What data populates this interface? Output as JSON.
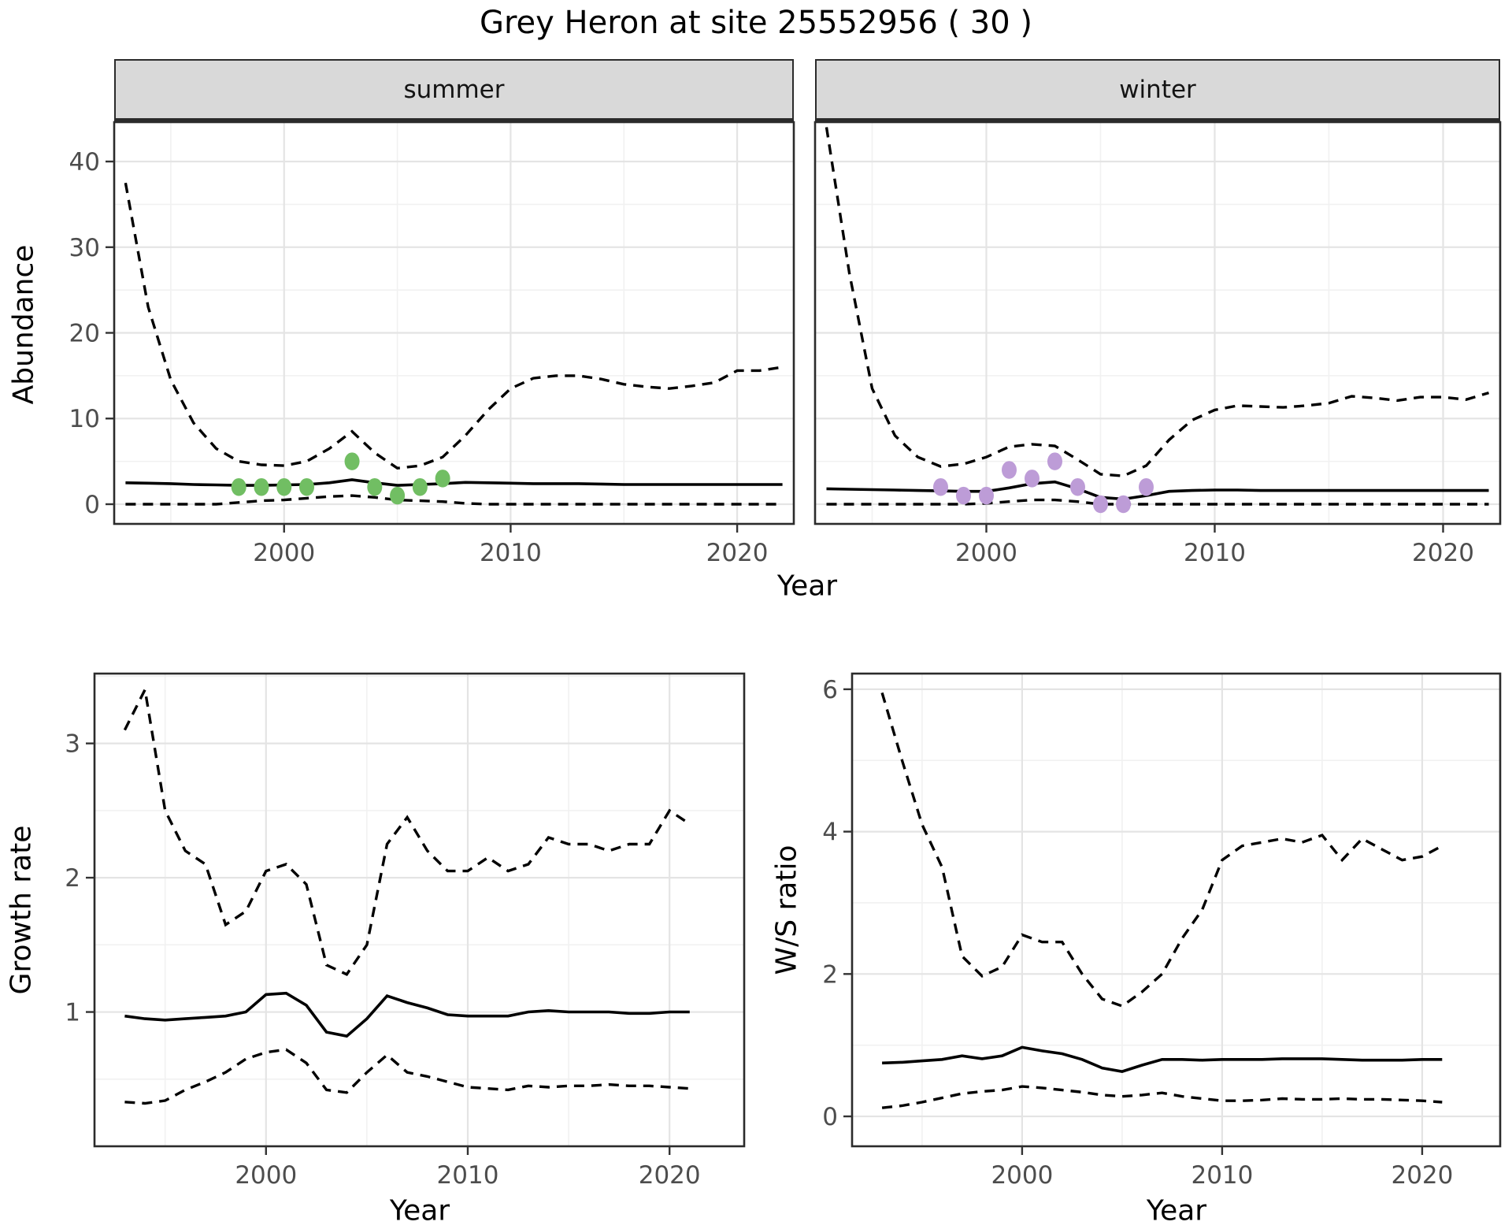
{
  "title": "Grey Heron at site 25552956 ( 30 )",
  "facets": [
    "summer",
    "winter"
  ],
  "axis_titles": {
    "abundance": "Abundance",
    "year": "Year",
    "growth": "Growth rate",
    "ws": "W/S ratio"
  },
  "style": {
    "summer_point_color": "#71BE63",
    "winter_point_color": "#BD9CD7",
    "line_color": "#000000",
    "strip_bg": "#D9D9D9",
    "panel_border": "#2B2B2B",
    "grid_major": "#E4E4E4",
    "grid_minor": "#F1F1F1",
    "tick_text": "#4D4D4D",
    "tick_mark": "#333333"
  },
  "chart_data": [
    {
      "id": "abundance-summer",
      "type": "line",
      "facet": "summer",
      "ylabel": "Abundance",
      "xlabel": "Year",
      "legend": "none",
      "grid": true,
      "xlim": [
        1992.5,
        2022.5
      ],
      "ylim": [
        -2.3,
        44.6
      ],
      "x_ticks": [
        2000,
        2010,
        2020
      ],
      "x_minor": [
        1995,
        2005,
        2015
      ],
      "y_ticks": [
        0,
        10,
        20,
        30,
        40
      ],
      "y_minor": [
        5,
        15,
        25,
        35
      ],
      "show_y_labels": true,
      "x": [
        1993,
        1994,
        1995,
        1996,
        1997,
        1998,
        1999,
        2000,
        2001,
        2002,
        2003,
        2004,
        2005,
        2006,
        2007,
        2008,
        2009,
        2010,
        2011,
        2012,
        2013,
        2014,
        2015,
        2016,
        2017,
        2018,
        2019,
        2020,
        2021,
        2022
      ],
      "series": [
        {
          "name": "upper_95_ci",
          "style": "dashed",
          "values": [
            37.5,
            23,
            14.5,
            9.5,
            6.5,
            5,
            4.6,
            4.5,
            5,
            6.5,
            8.5,
            6,
            4.2,
            4.5,
            5.5,
            8,
            11,
            13.5,
            14.7,
            15,
            15,
            14.6,
            14,
            13.7,
            13.5,
            13.8,
            14.2,
            15.6,
            15.6,
            16
          ]
        },
        {
          "name": "median",
          "style": "solid",
          "values": [
            2.5,
            2.45,
            2.4,
            2.3,
            2.25,
            2.2,
            2.2,
            2.25,
            2.3,
            2.5,
            2.85,
            2.5,
            2.2,
            2.3,
            2.4,
            2.55,
            2.5,
            2.45,
            2.4,
            2.4,
            2.4,
            2.35,
            2.3,
            2.3,
            2.3,
            2.3,
            2.3,
            2.3,
            2.3,
            2.3
          ]
        },
        {
          "name": "lower_95_ci",
          "style": "dashed",
          "values": [
            0,
            0,
            0,
            0,
            0,
            0.2,
            0.4,
            0.5,
            0.7,
            0.9,
            1.0,
            0.8,
            0.5,
            0.4,
            0.3,
            0.1,
            0,
            0,
            0,
            0,
            0,
            0,
            0,
            0,
            0,
            0,
            0,
            0,
            0,
            0
          ]
        }
      ],
      "observations": {
        "years": [
          1998,
          1999,
          2000,
          2001,
          2003,
          2004,
          2005,
          2006,
          2007
        ],
        "values": [
          2,
          2,
          2,
          2,
          5,
          2,
          1,
          2,
          3
        ],
        "color": "#71BE63"
      }
    },
    {
      "id": "abundance-winter",
      "type": "line",
      "facet": "winter",
      "ylabel": "Abundance",
      "xlabel": "Year",
      "legend": "none",
      "grid": true,
      "xlim": [
        1992.5,
        2022.5
      ],
      "ylim": [
        -2.3,
        44.6
      ],
      "x_ticks": [
        2000,
        2010,
        2020
      ],
      "x_minor": [
        1995,
        2005,
        2015
      ],
      "y_ticks": [
        0,
        10,
        20,
        30,
        40
      ],
      "y_minor": [
        5,
        15,
        25,
        35
      ],
      "show_y_labels": false,
      "x": [
        1993,
        1994,
        1995,
        1996,
        1997,
        1998,
        1999,
        2000,
        2001,
        2002,
        2003,
        2004,
        2005,
        2006,
        2007,
        2008,
        2009,
        2010,
        2011,
        2012,
        2013,
        2014,
        2015,
        2016,
        2017,
        2018,
        2019,
        2020,
        2021,
        2022
      ],
      "series": [
        {
          "name": "upper_95_ci",
          "style": "dashed",
          "values": [
            44,
            27,
            13.5,
            8,
            5.5,
            4.4,
            4.7,
            5.5,
            6.7,
            7.0,
            6.8,
            5.2,
            3.5,
            3.3,
            4.5,
            7.5,
            9.8,
            11,
            11.5,
            11.4,
            11.3,
            11.5,
            11.8,
            12.6,
            12.4,
            12.1,
            12.5,
            12.5,
            12.2,
            13
          ]
        },
        {
          "name": "median",
          "style": "solid",
          "values": [
            1.8,
            1.75,
            1.7,
            1.65,
            1.6,
            1.55,
            1.5,
            1.5,
            1.9,
            2.4,
            2.6,
            1.8,
            0.8,
            0.6,
            1.0,
            1.5,
            1.6,
            1.65,
            1.65,
            1.6,
            1.6,
            1.6,
            1.6,
            1.6,
            1.6,
            1.6,
            1.6,
            1.6,
            1.6,
            1.6
          ]
        },
        {
          "name": "lower_95_ci",
          "style": "dashed",
          "values": [
            0,
            0,
            0,
            0,
            0,
            0,
            0,
            0.1,
            0.3,
            0.5,
            0.5,
            0.3,
            0,
            0,
            0,
            0,
            0,
            0,
            0,
            0,
            0,
            0,
            0,
            0,
            0,
            0,
            0,
            0,
            0,
            0
          ]
        }
      ],
      "observations": {
        "years": [
          1998,
          1999,
          2000,
          2001,
          2002,
          2003,
          2004,
          2005,
          2006,
          2007
        ],
        "values": [
          2,
          1,
          1,
          4,
          3,
          5,
          2,
          0,
          0,
          2
        ],
        "color": "#BD9CD7"
      }
    },
    {
      "id": "growth-rate",
      "type": "line",
      "ylabel": "Growth rate",
      "xlabel": "Year",
      "legend": "none",
      "grid": true,
      "xlim": [
        1991.5,
        2023.7
      ],
      "ylim": [
        0.0,
        3.52
      ],
      "x_ticks": [
        2000,
        2010,
        2020
      ],
      "x_minor": [
        1995,
        2005,
        2015
      ],
      "y_ticks": [
        1,
        2,
        3
      ],
      "y_minor": [
        0.5,
        1.5,
        2.5,
        3.5
      ],
      "show_y_labels": true,
      "x": [
        1993,
        1994,
        1995,
        1996,
        1997,
        1998,
        1999,
        2000,
        2001,
        2002,
        2003,
        2004,
        2005,
        2006,
        2007,
        2008,
        2009,
        2010,
        2011,
        2012,
        2013,
        2014,
        2015,
        2016,
        2017,
        2018,
        2019,
        2020,
        2021
      ],
      "series": [
        {
          "name": "upper_95_ci",
          "style": "dashed",
          "values": [
            3.1,
            3.4,
            2.5,
            2.2,
            2.1,
            1.65,
            1.75,
            2.05,
            2.1,
            1.95,
            1.35,
            1.28,
            1.5,
            2.25,
            2.45,
            2.2,
            2.05,
            2.05,
            2.15,
            2.05,
            2.1,
            2.3,
            2.25,
            2.25,
            2.2,
            2.25,
            2.25,
            2.5,
            2.4
          ]
        },
        {
          "name": "median",
          "style": "solid",
          "values": [
            0.97,
            0.95,
            0.94,
            0.95,
            0.96,
            0.97,
            1.0,
            1.13,
            1.14,
            1.05,
            0.85,
            0.82,
            0.95,
            1.12,
            1.07,
            1.03,
            0.98,
            0.97,
            0.97,
            0.97,
            1.0,
            1.01,
            1.0,
            1.0,
            1.0,
            0.99,
            0.99,
            1.0,
            1.0
          ]
        },
        {
          "name": "lower_95_ci",
          "style": "dashed",
          "values": [
            0.33,
            0.32,
            0.34,
            0.42,
            0.48,
            0.55,
            0.65,
            0.7,
            0.72,
            0.62,
            0.42,
            0.4,
            0.55,
            0.68,
            0.55,
            0.52,
            0.48,
            0.44,
            0.43,
            0.42,
            0.45,
            0.44,
            0.45,
            0.45,
            0.46,
            0.45,
            0.45,
            0.44,
            0.43
          ]
        }
      ]
    },
    {
      "id": "ws-ratio",
      "type": "line",
      "ylabel": "W/S ratio",
      "xlabel": "Year",
      "legend": "none",
      "grid": true,
      "xlim": [
        1991.5,
        2023.9
      ],
      "ylim": [
        -0.42,
        6.22
      ],
      "x_ticks": [
        2000,
        2010,
        2020
      ],
      "x_minor": [
        1995,
        2005,
        2015
      ],
      "y_ticks": [
        0,
        2,
        4,
        6
      ],
      "y_minor": [
        1,
        3,
        5
      ],
      "show_y_labels": true,
      "x": [
        1993,
        1994,
        1995,
        1996,
        1997,
        1998,
        1999,
        2000,
        2001,
        2002,
        2003,
        2004,
        2005,
        2006,
        2007,
        2008,
        2009,
        2010,
        2011,
        2012,
        2013,
        2014,
        2015,
        2016,
        2017,
        2018,
        2019,
        2020,
        2021
      ],
      "series": [
        {
          "name": "upper_95_ci",
          "style": "dashed",
          "values": [
            5.95,
            5.0,
            4.1,
            3.5,
            2.25,
            1.97,
            2.1,
            2.55,
            2.45,
            2.45,
            2.0,
            1.65,
            1.55,
            1.75,
            2.0,
            2.5,
            2.9,
            3.6,
            3.8,
            3.85,
            3.9,
            3.85,
            3.95,
            3.6,
            3.9,
            3.75,
            3.6,
            3.65,
            3.8
          ]
        },
        {
          "name": "median",
          "style": "solid",
          "values": [
            0.75,
            0.76,
            0.78,
            0.8,
            0.85,
            0.81,
            0.85,
            0.97,
            0.92,
            0.88,
            0.8,
            0.68,
            0.63,
            0.72,
            0.8,
            0.8,
            0.79,
            0.8,
            0.8,
            0.8,
            0.81,
            0.81,
            0.81,
            0.8,
            0.79,
            0.79,
            0.79,
            0.8,
            0.8
          ]
        },
        {
          "name": "lower_95_ci",
          "style": "dashed",
          "values": [
            0.12,
            0.15,
            0.2,
            0.26,
            0.32,
            0.35,
            0.37,
            0.42,
            0.4,
            0.37,
            0.34,
            0.3,
            0.28,
            0.3,
            0.33,
            0.28,
            0.25,
            0.22,
            0.22,
            0.23,
            0.25,
            0.24,
            0.24,
            0.25,
            0.24,
            0.24,
            0.23,
            0.22,
            0.2
          ]
        }
      ]
    }
  ]
}
